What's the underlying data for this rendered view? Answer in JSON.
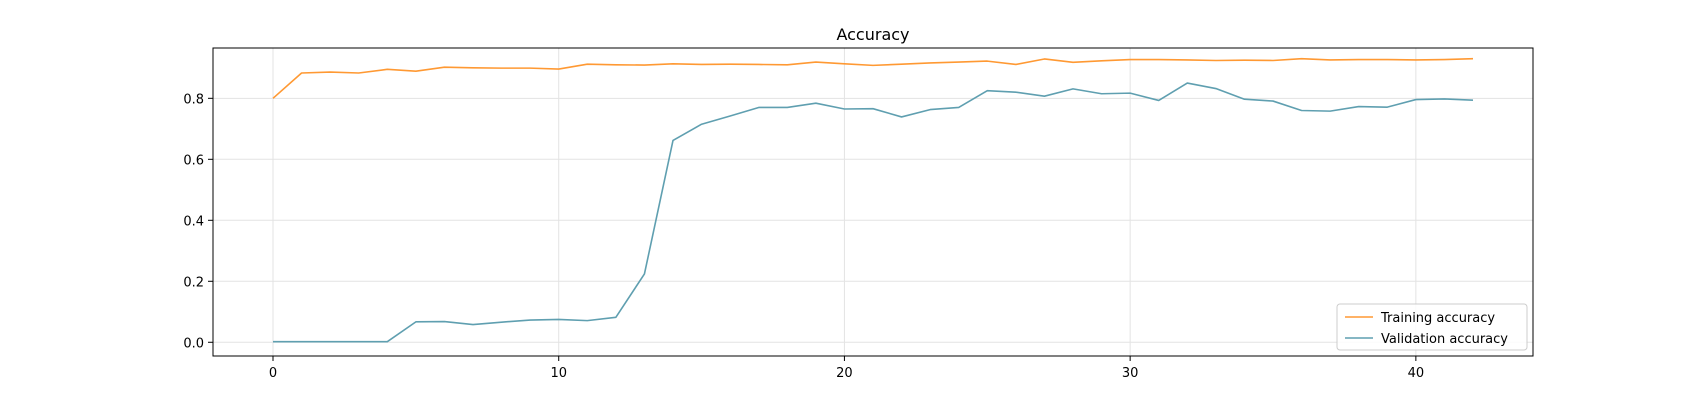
{
  "chart_data": {
    "type": "line",
    "title": "Accuracy",
    "xlabel": "",
    "ylabel": "",
    "xlim": [
      -2.1,
      44.1
    ],
    "ylim": [
      -0.045,
      0.965
    ],
    "xticks": [
      0,
      10,
      20,
      30,
      40
    ],
    "yticks": [
      0.0,
      0.2,
      0.4,
      0.6,
      0.8
    ],
    "ytick_labels": [
      "0.0",
      "0.2",
      "0.4",
      "0.6",
      "0.8"
    ],
    "grid": true,
    "legend_position": "lower-right",
    "x": [
      0,
      1,
      2,
      3,
      4,
      5,
      6,
      7,
      8,
      9,
      10,
      11,
      12,
      13,
      14,
      15,
      16,
      17,
      18,
      19,
      20,
      21,
      22,
      23,
      24,
      25,
      26,
      27,
      28,
      29,
      30,
      31,
      32,
      33,
      34,
      35,
      36,
      37,
      38,
      39,
      40,
      41,
      42
    ],
    "series": [
      {
        "name": "Training accuracy",
        "color": "#ff9933",
        "values": [
          0.8,
          0.883,
          0.886,
          0.883,
          0.895,
          0.889,
          0.902,
          0.9,
          0.899,
          0.899,
          0.896,
          0.912,
          0.91,
          0.909,
          0.913,
          0.911,
          0.912,
          0.911,
          0.91,
          0.919,
          0.913,
          0.908,
          0.912,
          0.916,
          0.919,
          0.922,
          0.911,
          0.929,
          0.918,
          0.923,
          0.927,
          0.927,
          0.926,
          0.924,
          0.925,
          0.924,
          0.93,
          0.926,
          0.927,
          0.927,
          0.926,
          0.927,
          0.93
        ]
      },
      {
        "name": "Validation accuracy",
        "color": "#5f9fb0",
        "values": [
          0.002,
          0.002,
          0.002,
          0.002,
          0.002,
          0.067,
          0.068,
          0.058,
          0.066,
          0.073,
          0.075,
          0.071,
          0.082,
          0.224,
          0.662,
          0.715,
          0.742,
          0.77,
          0.77,
          0.784,
          0.765,
          0.766,
          0.739,
          0.763,
          0.77,
          0.825,
          0.82,
          0.807,
          0.831,
          0.815,
          0.817,
          0.793,
          0.85,
          0.832,
          0.797,
          0.791,
          0.76,
          0.758,
          0.773,
          0.771,
          0.796,
          0.798,
          0.794
        ]
      }
    ]
  }
}
